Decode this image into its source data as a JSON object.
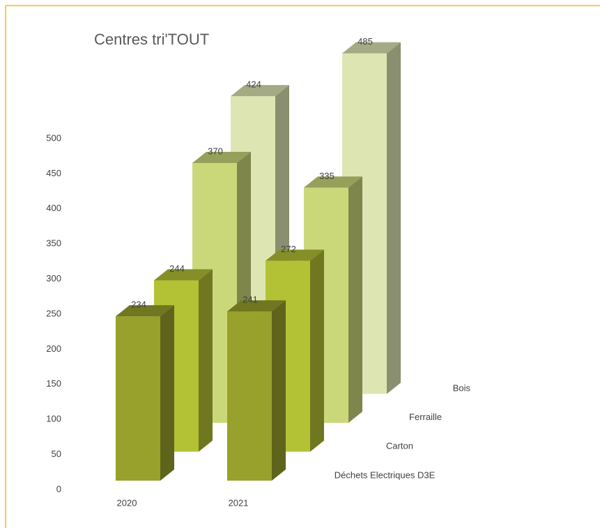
{
  "chart_data": {
    "type": "bar3d",
    "title": "Centres tri'TOUT",
    "categories": [
      "2020",
      "2021"
    ],
    "series": [
      {
        "name": "Déchets Electriques D3E",
        "color": "#97a12b",
        "values": [
          234,
          241
        ]
      },
      {
        "name": "Carton",
        "color": "#b3c235",
        "values": [
          244,
          272
        ]
      },
      {
        "name": "Ferraille",
        "color": "#cbd87a",
        "values": [
          370,
          335
        ]
      },
      {
        "name": "Bois",
        "color": "#dde6b3",
        "values": [
          424,
          485
        ]
      }
    ],
    "ylim": [
      0,
      500
    ],
    "yticks": [
      0,
      50,
      100,
      150,
      200,
      250,
      300,
      350,
      400,
      450,
      500
    ]
  }
}
